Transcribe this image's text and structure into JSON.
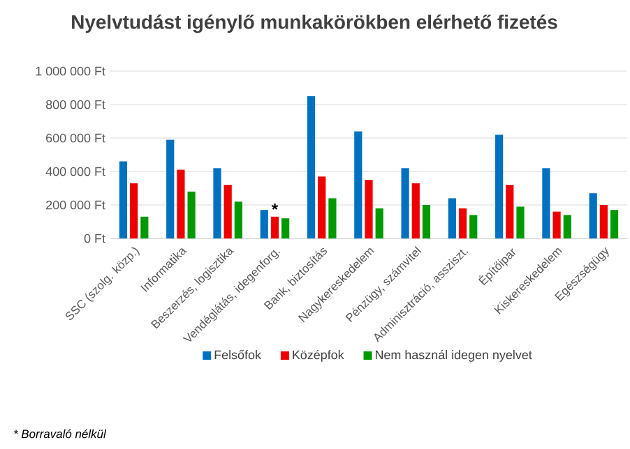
{
  "chart_data": {
    "type": "bar",
    "title": "Nyelvtudást igénylő munkakörökben elérhető fizetés",
    "categories": [
      "SSC (szolg. közp.)",
      "Informatika",
      "Beszerzés, logisztika",
      "Vendéglátás, idegenforg.",
      "Bank, biztosítás",
      "Nagykereskedelem",
      "Pénzügy, számvitel",
      "Adminisztráció, assziszt.",
      "Építőipar",
      "Kiskereskedelem",
      "Egészségügy"
    ],
    "series": [
      {
        "name": "Felsőfok",
        "color": "#0070c0",
        "values": [
          460000,
          590000,
          420000,
          170000,
          850000,
          640000,
          420000,
          240000,
          620000,
          420000,
          270000
        ]
      },
      {
        "name": "Középfok",
        "color": "#ee0000",
        "values": [
          330000,
          410000,
          320000,
          130000,
          370000,
          350000,
          330000,
          180000,
          320000,
          160000,
          200000
        ]
      },
      {
        "name": "Nem használ idegen nyelvet",
        "color": "#009900",
        "values": [
          130000,
          280000,
          220000,
          120000,
          240000,
          180000,
          200000,
          140000,
          190000,
          140000,
          170000
        ]
      }
    ],
    "ylim": [
      0,
      1000000
    ],
    "yticks": [
      {
        "value": 0,
        "label": "0 Ft"
      },
      {
        "value": 200000,
        "label": "200 000 Ft"
      },
      {
        "value": 400000,
        "label": "400 000 Ft"
      },
      {
        "value": 600000,
        "label": "600 000 Ft"
      },
      {
        "value": 800000,
        "label": "800 000 Ft"
      },
      {
        "value": 1000000,
        "label": "1 000 000 Ft"
      }
    ],
    "grid": "y",
    "legend": "bottom",
    "annotations": [
      {
        "text": "*",
        "x": "Vendéglátás, idegenforg.",
        "y": 130000
      },
      "* Borravaló nélkül"
    ]
  }
}
